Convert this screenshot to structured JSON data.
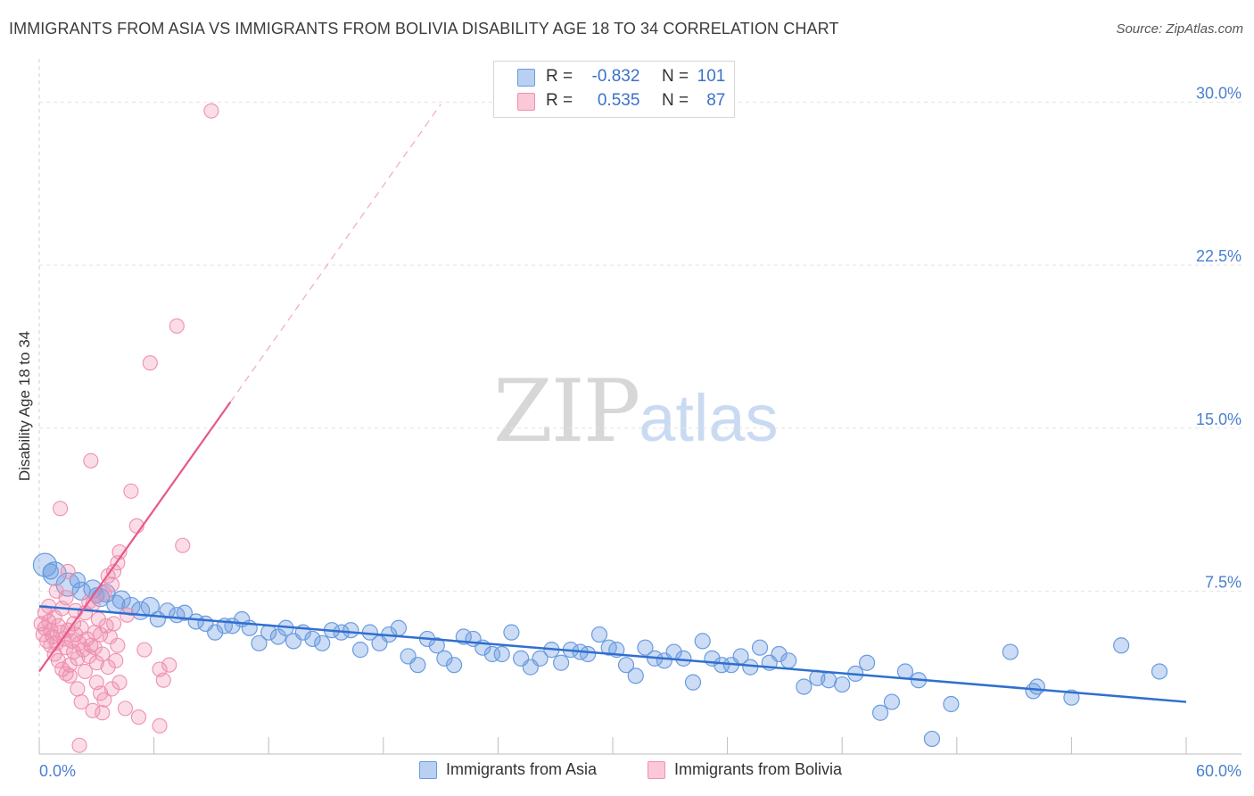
{
  "header": {
    "title": "IMMIGRANTS FROM ASIA VS IMMIGRANTS FROM BOLIVIA DISABILITY AGE 18 TO 34 CORRELATION CHART",
    "source": "Source: ZipAtlas.com"
  },
  "watermark": {
    "zip": "ZIP",
    "atlas": "atlas"
  },
  "legend": {
    "rows": [
      {
        "r_label": "R =",
        "r_value": "-0.832",
        "n_label": "N =",
        "n_value": "101"
      },
      {
        "r_label": "R =",
        "r_value": "0.535",
        "n_label": "N =",
        "n_value": "87"
      }
    ]
  },
  "bottom_legend": {
    "items": [
      {
        "label": "Immigrants from Asia"
      },
      {
        "label": "Immigrants from Bolivia"
      }
    ]
  },
  "chart_data": {
    "type": "scatter",
    "title": "IMMIGRANTS FROM ASIA VS IMMIGRANTS FROM BOLIVIA DISABILITY AGE 18 TO 34 CORRELATION CHART",
    "xlabel": "",
    "ylabel": "Disability Age 18 to 34",
    "xlim": [
      0,
      60
    ],
    "ylim": [
      0,
      31.5
    ],
    "x_ticks": [
      0,
      60
    ],
    "x_tick_labels": [
      "0.0%",
      "60.0%"
    ],
    "y_ticks": [
      7.5,
      15.0,
      22.5,
      30.0
    ],
    "y_tick_labels": [
      "7.5%",
      "15.0%",
      "22.5%",
      "30.0%"
    ],
    "grid": true,
    "colors": {
      "asia": "#6a9be0",
      "bolivia": "#f08fb0",
      "asia_line": "#2f6fcf",
      "bolivia_line": "#e8578a",
      "tick": "#4a7fd0"
    },
    "series": [
      {
        "name": "Immigrants from Asia",
        "r": -0.832,
        "n": 101,
        "trend": {
          "x": [
            0,
            60
          ],
          "y": [
            6.8,
            2.4
          ]
        },
        "points": [
          [
            0.3,
            8.7
          ],
          [
            0.8,
            8.3
          ],
          [
            1.5,
            7.8
          ],
          [
            2.2,
            7.5
          ],
          [
            2.8,
            7.6
          ],
          [
            3.2,
            7.2
          ],
          [
            3.5,
            7.4
          ],
          [
            4.0,
            6.9
          ],
          [
            4.3,
            7.1
          ],
          [
            4.8,
            6.8
          ],
          [
            5.3,
            6.6
          ],
          [
            5.8,
            6.8
          ],
          [
            6.2,
            6.2
          ],
          [
            6.7,
            6.6
          ],
          [
            7.2,
            6.4
          ],
          [
            7.6,
            6.5
          ],
          [
            8.2,
            6.1
          ],
          [
            8.7,
            6.0
          ],
          [
            9.2,
            5.6
          ],
          [
            9.7,
            5.9
          ],
          [
            10.1,
            5.9
          ],
          [
            10.6,
            6.2
          ],
          [
            11.0,
            5.8
          ],
          [
            11.5,
            5.1
          ],
          [
            12.0,
            5.6
          ],
          [
            12.5,
            5.4
          ],
          [
            12.9,
            5.8
          ],
          [
            13.3,
            5.2
          ],
          [
            13.8,
            5.6
          ],
          [
            14.3,
            5.3
          ],
          [
            14.8,
            5.1
          ],
          [
            15.3,
            5.7
          ],
          [
            15.8,
            5.6
          ],
          [
            16.3,
            5.7
          ],
          [
            16.8,
            4.8
          ],
          [
            17.3,
            5.6
          ],
          [
            17.8,
            5.1
          ],
          [
            18.3,
            5.5
          ],
          [
            18.8,
            5.8
          ],
          [
            19.3,
            4.5
          ],
          [
            19.8,
            4.1
          ],
          [
            20.3,
            5.3
          ],
          [
            20.8,
            5.0
          ],
          [
            21.2,
            4.4
          ],
          [
            21.7,
            4.1
          ],
          [
            22.2,
            5.4
          ],
          [
            22.7,
            5.3
          ],
          [
            23.2,
            4.9
          ],
          [
            23.7,
            4.6
          ],
          [
            24.2,
            4.6
          ],
          [
            24.7,
            5.6
          ],
          [
            25.2,
            4.4
          ],
          [
            25.7,
            4.0
          ],
          [
            26.2,
            4.4
          ],
          [
            26.8,
            4.8
          ],
          [
            27.3,
            4.2
          ],
          [
            27.8,
            4.8
          ],
          [
            28.3,
            4.7
          ],
          [
            28.7,
            4.6
          ],
          [
            29.3,
            5.5
          ],
          [
            29.8,
            4.9
          ],
          [
            30.2,
            4.8
          ],
          [
            30.7,
            4.1
          ],
          [
            31.2,
            3.6
          ],
          [
            31.7,
            4.9
          ],
          [
            32.2,
            4.4
          ],
          [
            32.7,
            4.3
          ],
          [
            33.2,
            4.7
          ],
          [
            33.7,
            4.4
          ],
          [
            34.2,
            3.3
          ],
          [
            34.7,
            5.2
          ],
          [
            35.2,
            4.4
          ],
          [
            35.7,
            4.1
          ],
          [
            36.2,
            4.1
          ],
          [
            36.7,
            4.5
          ],
          [
            37.2,
            4.0
          ],
          [
            37.7,
            4.9
          ],
          [
            38.2,
            4.2
          ],
          [
            38.7,
            4.6
          ],
          [
            39.2,
            4.3
          ],
          [
            40.0,
            3.1
          ],
          [
            40.7,
            3.5
          ],
          [
            41.3,
            3.4
          ],
          [
            42.0,
            3.2
          ],
          [
            42.7,
            3.7
          ],
          [
            43.3,
            4.2
          ],
          [
            44.0,
            1.9
          ],
          [
            44.6,
            2.4
          ],
          [
            45.3,
            3.8
          ],
          [
            46.0,
            3.4
          ],
          [
            46.7,
            0.7
          ],
          [
            47.7,
            2.3
          ],
          [
            50.8,
            4.7
          ],
          [
            52.0,
            2.9
          ],
          [
            52.2,
            3.1
          ],
          [
            54.0,
            2.6
          ],
          [
            56.6,
            5.0
          ],
          [
            58.6,
            3.8
          ],
          [
            0.6,
            8.4
          ],
          [
            2.0,
            8.0
          ],
          [
            3.0,
            7.3
          ]
        ]
      },
      {
        "name": "Immigrants from Bolivia",
        "r": 0.535,
        "n": 87,
        "trend": {
          "x": [
            0,
            10
          ],
          "y": [
            3.8,
            16.2
          ]
        },
        "trend_dashed": {
          "x": [
            10,
            21
          ],
          "y": [
            16.2,
            29.9
          ]
        },
        "points": [
          [
            0.1,
            6.0
          ],
          [
            0.2,
            5.5
          ],
          [
            0.3,
            5.8
          ],
          [
            0.3,
            6.5
          ],
          [
            0.4,
            5.2
          ],
          [
            0.5,
            6.1
          ],
          [
            0.5,
            6.8
          ],
          [
            0.6,
            5.0
          ],
          [
            0.7,
            5.4
          ],
          [
            0.8,
            6.3
          ],
          [
            0.8,
            4.6
          ],
          [
            0.9,
            5.1
          ],
          [
            1.0,
            5.9
          ],
          [
            1.0,
            4.3
          ],
          [
            1.1,
            5.6
          ],
          [
            1.2,
            6.7
          ],
          [
            1.2,
            3.9
          ],
          [
            1.3,
            5.3
          ],
          [
            1.4,
            4.9
          ],
          [
            1.4,
            7.2
          ],
          [
            1.5,
            5.7
          ],
          [
            1.6,
            4.1
          ],
          [
            1.6,
            3.6
          ],
          [
            1.7,
            5.2
          ],
          [
            1.8,
            4.7
          ],
          [
            1.8,
            6.0
          ],
          [
            1.9,
            5.5
          ],
          [
            2.0,
            4.4
          ],
          [
            2.0,
            3.0
          ],
          [
            2.1,
            5.1
          ],
          [
            2.2,
            5.8
          ],
          [
            2.2,
            2.4
          ],
          [
            2.3,
            4.8
          ],
          [
            2.4,
            6.5
          ],
          [
            2.4,
            3.8
          ],
          [
            2.5,
            5.3
          ],
          [
            2.6,
            4.5
          ],
          [
            2.6,
            7.0
          ],
          [
            2.7,
            5.0
          ],
          [
            2.8,
            6.9
          ],
          [
            2.8,
            2.0
          ],
          [
            2.9,
            5.6
          ],
          [
            3.0,
            4.2
          ],
          [
            3.0,
            3.3
          ],
          [
            3.1,
            6.2
          ],
          [
            3.2,
            5.5
          ],
          [
            3.2,
            2.8
          ],
          [
            3.3,
            4.6
          ],
          [
            3.4,
            7.4
          ],
          [
            3.4,
            2.5
          ],
          [
            3.5,
            5.9
          ],
          [
            3.6,
            8.2
          ],
          [
            3.6,
            4.0
          ],
          [
            3.7,
            5.4
          ],
          [
            3.8,
            7.8
          ],
          [
            3.8,
            3.0
          ],
          [
            3.9,
            6.0
          ],
          [
            4.0,
            4.3
          ],
          [
            4.1,
            8.8
          ],
          [
            4.1,
            5.0
          ],
          [
            1.1,
            11.3
          ],
          [
            2.7,
            13.5
          ],
          [
            4.2,
            9.3
          ],
          [
            4.8,
            12.1
          ],
          [
            4.2,
            3.3
          ],
          [
            5.1,
            10.5
          ],
          [
            5.5,
            4.8
          ],
          [
            5.8,
            18.0
          ],
          [
            6.3,
            3.9
          ],
          [
            6.5,
            3.4
          ],
          [
            6.3,
            1.3
          ],
          [
            7.2,
            19.7
          ],
          [
            7.5,
            9.6
          ],
          [
            9.0,
            29.6
          ],
          [
            0.9,
            7.5
          ],
          [
            1.5,
            8.4
          ],
          [
            4.5,
            2.1
          ],
          [
            5.2,
            1.7
          ],
          [
            2.1,
            0.4
          ],
          [
            3.3,
            1.9
          ],
          [
            4.6,
            6.4
          ],
          [
            3.9,
            8.4
          ],
          [
            1.4,
            3.7
          ],
          [
            2.9,
            4.9
          ],
          [
            0.6,
            5.7
          ],
          [
            1.9,
            6.6
          ],
          [
            6.8,
            4.1
          ]
        ]
      }
    ]
  }
}
